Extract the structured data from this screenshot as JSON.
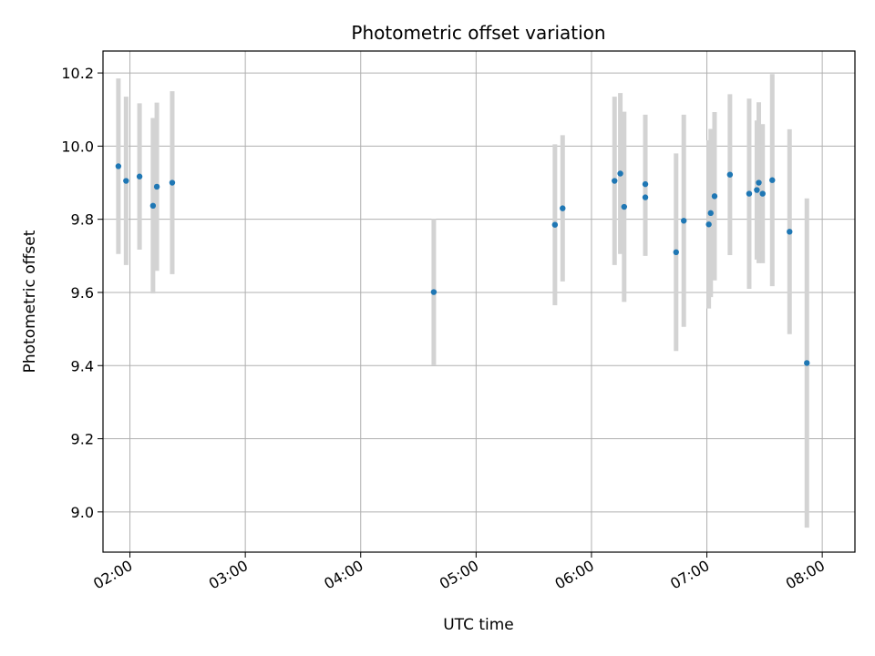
{
  "chart_data": {
    "type": "scatter",
    "title": "Photometric offset variation",
    "xlabel": "UTC time",
    "ylabel": "Photometric offset",
    "x_tick_labels": [
      "02:00",
      "03:00",
      "04:00",
      "05:00",
      "06:00",
      "07:00",
      "08:00"
    ],
    "y_tick_labels": [
      "9.0",
      "9.2",
      "9.4",
      "9.6",
      "9.8",
      "10.0",
      "10.2"
    ],
    "xlim": [
      "01:46",
      "08:17"
    ],
    "ylim": [
      8.89,
      10.26
    ],
    "grid": true,
    "colors": {
      "points": "#1f77b4",
      "errorbars": "#d3d3d3",
      "grid": "#b0b0b0"
    },
    "points": [
      {
        "x": "01:54",
        "y": 9.945,
        "err": 0.24
      },
      {
        "x": "01:58",
        "y": 9.905,
        "err": 0.23
      },
      {
        "x": "02:05",
        "y": 9.917,
        "err": 0.2
      },
      {
        "x": "02:12",
        "y": 9.837,
        "err": 0.24
      },
      {
        "x": "02:14",
        "y": 9.889,
        "err": 0.23
      },
      {
        "x": "02:22",
        "y": 9.9,
        "err": 0.25
      },
      {
        "x": "04:38",
        "y": 9.601,
        "err": 0.2
      },
      {
        "x": "05:41",
        "y": 9.785,
        "err": 0.22
      },
      {
        "x": "05:45",
        "y": 9.83,
        "err": 0.2
      },
      {
        "x": "06:12",
        "y": 9.905,
        "err": 0.23
      },
      {
        "x": "06:15",
        "y": 9.925,
        "err": 0.22
      },
      {
        "x": "06:17",
        "y": 9.834,
        "err": 0.26
      },
      {
        "x": "06:28",
        "y": 9.896,
        "err": 0.19
      },
      {
        "x": "06:28",
        "y": 9.86,
        "err": 0.16
      },
      {
        "x": "06:44",
        "y": 9.71,
        "err": 0.27
      },
      {
        "x": "06:48",
        "y": 9.796,
        "err": 0.29
      },
      {
        "x": "07:01",
        "y": 9.786,
        "err": 0.23
      },
      {
        "x": "07:02",
        "y": 9.817,
        "err": 0.23
      },
      {
        "x": "07:04",
        "y": 9.863,
        "err": 0.23
      },
      {
        "x": "07:12",
        "y": 9.922,
        "err": 0.22
      },
      {
        "x": "07:22",
        "y": 9.87,
        "err": 0.26
      },
      {
        "x": "07:26",
        "y": 9.88,
        "err": 0.19
      },
      {
        "x": "07:27",
        "y": 9.9,
        "err": 0.22
      },
      {
        "x": "07:29",
        "y": 9.87,
        "err": 0.19
      },
      {
        "x": "07:34",
        "y": 9.907,
        "err": 0.29
      },
      {
        "x": "07:43",
        "y": 9.766,
        "err": 0.28
      },
      {
        "x": "07:52",
        "y": 9.407,
        "err": 0.45
      }
    ]
  }
}
